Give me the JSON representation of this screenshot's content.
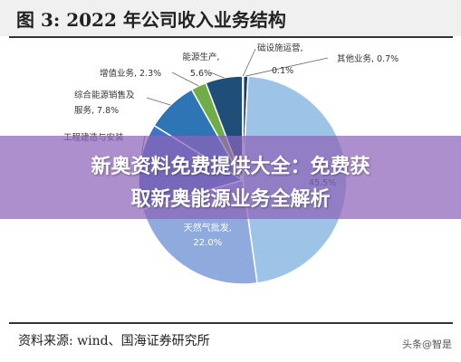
{
  "header": {
    "title": "图 3:  2022 年公司收入业务结构"
  },
  "chart_data": {
    "type": "pie",
    "title": "图 3:  2022 年公司收入业务结构",
    "slices": [
      {
        "name": "其他业务",
        "label": "其他业务, 0.7%",
        "value": 0.7,
        "color": "#1f3a6b"
      },
      {
        "name": "天然气零售",
        "label": "天然气零售, 45.5%",
        "value": 45.5,
        "color": "#9dc3e6"
      },
      {
        "name": "天然气批发",
        "label": "天然气批发, 22.0%",
        "value": 22.0,
        "color": "#8faadc"
      },
      {
        "name": "工程建造与安装",
        "label": "工程建造与安装",
        "value": 12.9,
        "color": "#4472c4"
      },
      {
        "name": "综合能源销售及服务",
        "label": "综合能源销售及服务, 7.8%",
        "value": 7.8,
        "color": "#2e75b6"
      },
      {
        "name": "增值业务",
        "label": "增值业务, 2.3%",
        "value": 2.3,
        "color": "#70ad47"
      },
      {
        "name": "能源生产",
        "label": "能源生产, 5.6%",
        "value": 5.6,
        "color": "#1f4e79"
      },
      {
        "name": "础设施运营",
        "label": "础设施运营, 0.1%",
        "value": 0.1,
        "color": "#bdd7ee"
      }
    ],
    "visible_label_fragments": {
      "retail_partial": "告,",
      "retail_percent": "45.5%"
    },
    "legend": "none"
  },
  "banner": {
    "line1": "新奥资料免费提供大全：免费获",
    "line2": "取新奥能源业务全解析"
  },
  "footer": {
    "source": "资料来源:  wind、国海证券研究所",
    "watermark": "头条@智是"
  }
}
